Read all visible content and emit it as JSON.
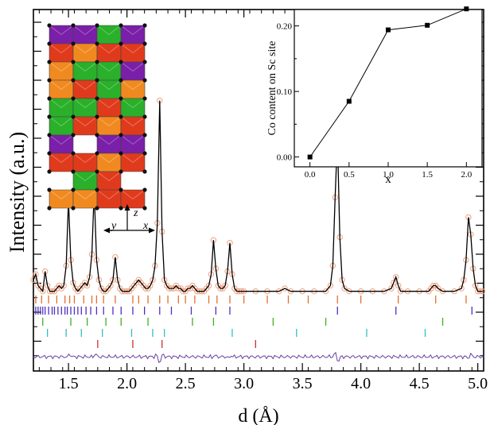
{
  "chart_data": [
    {
      "type": "line",
      "title": "",
      "xlabel": "d (Å)",
      "ylabel": "Intensity (a.u.)",
      "xlim": [
        1.2,
        5.05
      ],
      "xticks": [
        "1.5",
        "2.0",
        "2.5",
        "3.0",
        "3.5",
        "4.0",
        "4.5",
        "5.0"
      ],
      "ylim": [
        -0.27,
        1.0
      ],
      "y_tick_labels": "none",
      "grid": false,
      "series": [
        {
          "role": "observed",
          "marker": "open-circle",
          "color": "#f0a080",
          "x": [
            1.2,
            1.22,
            1.24,
            1.26,
            1.28,
            1.3,
            1.32,
            1.34,
            1.36,
            1.38,
            1.4,
            1.42,
            1.44,
            1.46,
            1.48,
            1.5,
            1.52,
            1.54,
            1.56,
            1.58,
            1.6,
            1.62,
            1.64,
            1.66,
            1.68,
            1.7,
            1.72,
            1.74,
            1.76,
            1.78,
            1.8,
            1.82,
            1.84,
            1.86,
            1.88,
            1.9,
            1.92,
            1.94,
            1.96,
            1.98,
            2.0,
            2.02,
            2.04,
            2.06,
            2.08,
            2.1,
            2.12,
            2.14,
            2.16,
            2.18,
            2.2,
            2.22,
            2.24,
            2.26,
            2.28,
            2.3,
            2.32,
            2.34,
            2.36,
            2.38,
            2.4,
            2.42,
            2.44,
            2.46,
            2.48,
            2.5,
            2.52,
            2.54,
            2.56,
            2.58,
            2.6,
            2.62,
            2.64,
            2.66,
            2.68,
            2.7,
            2.72,
            2.74,
            2.76,
            2.78,
            2.8,
            2.82,
            2.84,
            2.86,
            2.88,
            2.9,
            2.92,
            2.94,
            2.96,
            2.98,
            3.0,
            3.1,
            3.2,
            3.3,
            3.35,
            3.4,
            3.5,
            3.6,
            3.7,
            3.74,
            3.76,
            3.78,
            3.8,
            3.82,
            3.84,
            3.86,
            3.9,
            4.0,
            4.1,
            4.2,
            4.26,
            4.28,
            4.3,
            4.32,
            4.34,
            4.4,
            4.5,
            4.58,
            4.6,
            4.62,
            4.64,
            4.66,
            4.7,
            4.8,
            4.86,
            4.88,
            4.9,
            4.92,
            4.94,
            4.96,
            4.98,
            5.0,
            5.02,
            5.04
          ],
          "y": [
            0.05,
            0.07,
            0.03,
            0.02,
            0.01,
            0.08,
            0.03,
            0.01,
            0.01,
            0.01,
            0.02,
            0.03,
            0.02,
            0.03,
            0.1,
            0.33,
            0.12,
            0.04,
            0.02,
            0.01,
            0.02,
            0.03,
            0.04,
            0.03,
            0.06,
            0.14,
            0.36,
            0.12,
            0.05,
            0.02,
            0.01,
            0.01,
            0.02,
            0.03,
            0.05,
            0.13,
            0.05,
            0.02,
            0.01,
            0.01,
            0.01,
            0.01,
            0.02,
            0.03,
            0.04,
            0.05,
            0.04,
            0.03,
            0.02,
            0.02,
            0.03,
            0.05,
            0.1,
            0.25,
            0.68,
            0.22,
            0.05,
            0.03,
            0.02,
            0.02,
            0.02,
            0.03,
            0.02,
            0.02,
            0.01,
            0.01,
            0.02,
            0.02,
            0.03,
            0.02,
            0.01,
            0.01,
            0.01,
            0.01,
            0.02,
            0.03,
            0.07,
            0.19,
            0.09,
            0.03,
            0.02,
            0.02,
            0.03,
            0.08,
            0.18,
            0.07,
            0.02,
            0.01,
            0.01,
            0.01,
            0.01,
            0.01,
            0.01,
            0.01,
            0.02,
            0.01,
            0.01,
            0.01,
            0.01,
            0.03,
            0.1,
            0.34,
            0.55,
            0.2,
            0.05,
            0.02,
            0.01,
            0.01,
            0.01,
            0.01,
            0.02,
            0.04,
            0.06,
            0.03,
            0.01,
            0.01,
            0.01,
            0.01,
            0.02,
            0.03,
            0.03,
            0.02,
            0.01,
            0.01,
            0.02,
            0.05,
            0.12,
            0.27,
            0.21,
            0.09,
            0.03,
            0.01,
            0.01,
            0.01
          ]
        },
        {
          "role": "calculated",
          "color": "#000000",
          "same_x_as": "observed"
        },
        {
          "role": "difference",
          "color": "#6a3fa0",
          "baseline_y": -0.22
        }
      ],
      "reflection_tick_rows": [
        {
          "color": "#e07030",
          "x": [
            1.22,
            1.27,
            1.33,
            1.4,
            1.47,
            1.51,
            1.55,
            1.63,
            1.7,
            1.74,
            1.8,
            1.9,
            2.05,
            2.1,
            2.18,
            2.28,
            2.35,
            2.44,
            2.5,
            2.58,
            2.7,
            2.77,
            2.88,
            3.0,
            3.2,
            3.38,
            3.55,
            3.8,
            4.0,
            4.32,
            4.64,
            4.9
          ]
        },
        {
          "color": "#5030c0",
          "x": [
            1.22,
            1.24,
            1.26,
            1.28,
            1.3,
            1.33,
            1.36,
            1.38,
            1.41,
            1.44,
            1.47,
            1.49,
            1.52,
            1.55,
            1.58,
            1.61,
            1.65,
            1.69,
            1.74,
            1.8,
            1.88,
            1.95,
            2.05,
            2.15,
            2.28,
            2.38,
            2.55,
            2.76,
            2.88,
            3.8,
            4.3,
            4.95
          ]
        },
        {
          "color": "#40b020",
          "x": [
            1.28,
            1.52,
            1.66,
            1.82,
            1.95,
            2.18,
            2.56,
            2.74,
            3.25,
            3.7,
            4.7
          ]
        },
        {
          "color": "#30c0c0",
          "x": [
            1.32,
            1.48,
            1.61,
            1.79,
            2.04,
            2.22,
            2.32,
            2.9,
            3.45,
            4.05,
            4.55
          ]
        },
        {
          "color": "#c83030",
          "x": [
            1.75,
            2.05,
            2.3,
            3.1
          ]
        }
      ]
    },
    {
      "type": "line",
      "title": "",
      "xlabel": "x",
      "ylabel": "Co content on Sc site",
      "xlim": [
        -0.2,
        2.2
      ],
      "ylim": [
        -0.015,
        0.225
      ],
      "xticks": [
        "0.0",
        "0.5",
        "1.0",
        "1.5",
        "2.0"
      ],
      "yticks": [
        "0.00",
        "0.10",
        "0.20"
      ],
      "grid": false,
      "series": [
        {
          "marker": "filled-square",
          "color": "#000000",
          "x": [
            0.0,
            0.5,
            1.0,
            1.5,
            2.0
          ],
          "y": [
            0.0,
            0.085,
            0.194,
            0.201,
            0.226
          ]
        }
      ]
    }
  ],
  "structure_inset": {
    "axis_labels": {
      "y": "y",
      "z": "z",
      "x": "x"
    },
    "polyhedra_colors": [
      "#7a1fa8",
      "#e03a1c",
      "#2ab02a",
      "#f08a20"
    ]
  }
}
